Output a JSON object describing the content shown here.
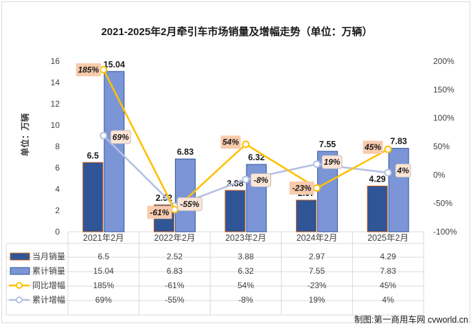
{
  "chart_data": {
    "type": "bar",
    "title": "2021-2025年2月牵引车市场销量及增幅走势（单位：万辆）",
    "ylabel": "单位：万辆",
    "categories": [
      "2021年2月",
      "2022年2月",
      "2023年2月",
      "2024年2月",
      "2025年2月"
    ],
    "ylim": [
      0,
      16
    ],
    "y_ticks": [
      "0",
      "2",
      "4",
      "6",
      "8",
      "10",
      "12",
      "14",
      "16"
    ],
    "y2lim": [
      -100,
      200
    ],
    "y2_ticks": [
      "-100%",
      "-50%",
      "0%",
      "50%",
      "100%",
      "150%",
      "200%"
    ],
    "bar_series": [
      {
        "name": "当月销量",
        "values": [
          6.5,
          2.52,
          3.88,
          2.97,
          4.29
        ],
        "labels": [
          "6.5",
          "2.52",
          "3.88",
          "2.97",
          "4.29"
        ],
        "color": "#2f5597"
      },
      {
        "name": "累计销量",
        "values": [
          15.04,
          6.83,
          6.32,
          7.55,
          7.83
        ],
        "labels": [
          "15.04",
          "6.83",
          "6.32",
          "7.55",
          "7.83"
        ],
        "color": "#7b95d6"
      }
    ],
    "line_series": [
      {
        "name": "同比增幅",
        "values": [
          185,
          -61,
          54,
          -23,
          45
        ],
        "labels": [
          "185%",
          "-61%",
          "54%",
          "-23%",
          "45%"
        ],
        "color": "#ffc000",
        "label_bg": "#f8cbad"
      },
      {
        "name": "累计增幅",
        "values": [
          69,
          -55,
          -8,
          19,
          4
        ],
        "labels": [
          "69%",
          "-55%",
          "-8%",
          "19%",
          "4%"
        ],
        "color": "#b4c0e0",
        "label_bg": "#fbe5d6"
      }
    ],
    "legend": "table-bottom",
    "grid": false
  },
  "watermark": "制图:第一商用车网 cvworld.cn"
}
